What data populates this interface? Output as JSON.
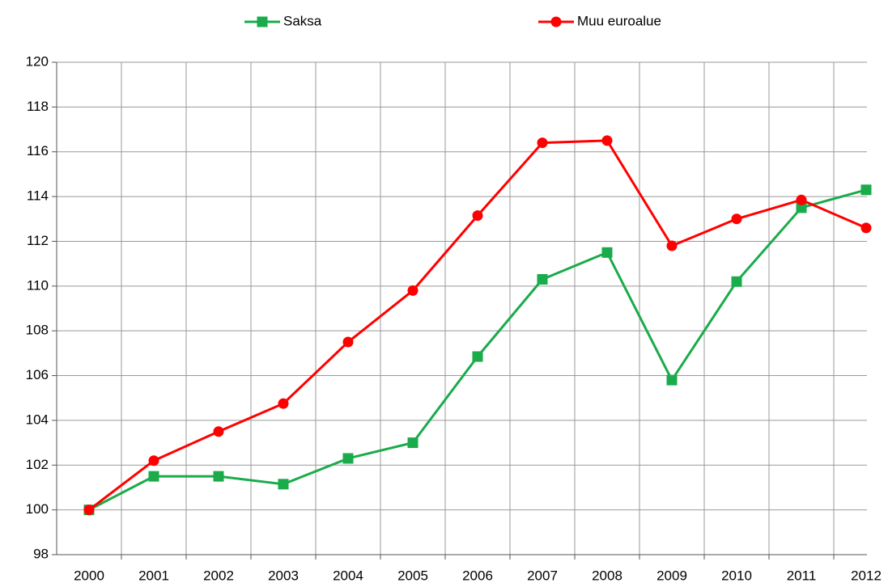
{
  "chart_data": {
    "type": "line",
    "categories": [
      "2000",
      "2001",
      "2002",
      "2003",
      "2004",
      "2005",
      "2006",
      "2007",
      "2008",
      "2009",
      "2010",
      "2011",
      "2012"
    ],
    "series": [
      {
        "name": "Saksa",
        "color": "#1aab4a",
        "marker": "square",
        "values": [
          100,
          101.5,
          101.5,
          101.15,
          102.3,
          103.0,
          106.85,
          110.3,
          111.5,
          105.8,
          110.2,
          113.5,
          114.3
        ]
      },
      {
        "name": "Muu euroalue",
        "color": "#ff0000",
        "marker": "circle",
        "values": [
          100,
          102.2,
          103.5,
          104.75,
          107.5,
          109.8,
          113.15,
          116.4,
          116.5,
          111.8,
          113.0,
          113.85,
          112.6
        ]
      }
    ],
    "ylim": [
      98,
      120
    ],
    "yticks": [
      98,
      100,
      102,
      104,
      106,
      108,
      110,
      112,
      114,
      116,
      118,
      120
    ],
    "grid": true,
    "legend": "top"
  }
}
